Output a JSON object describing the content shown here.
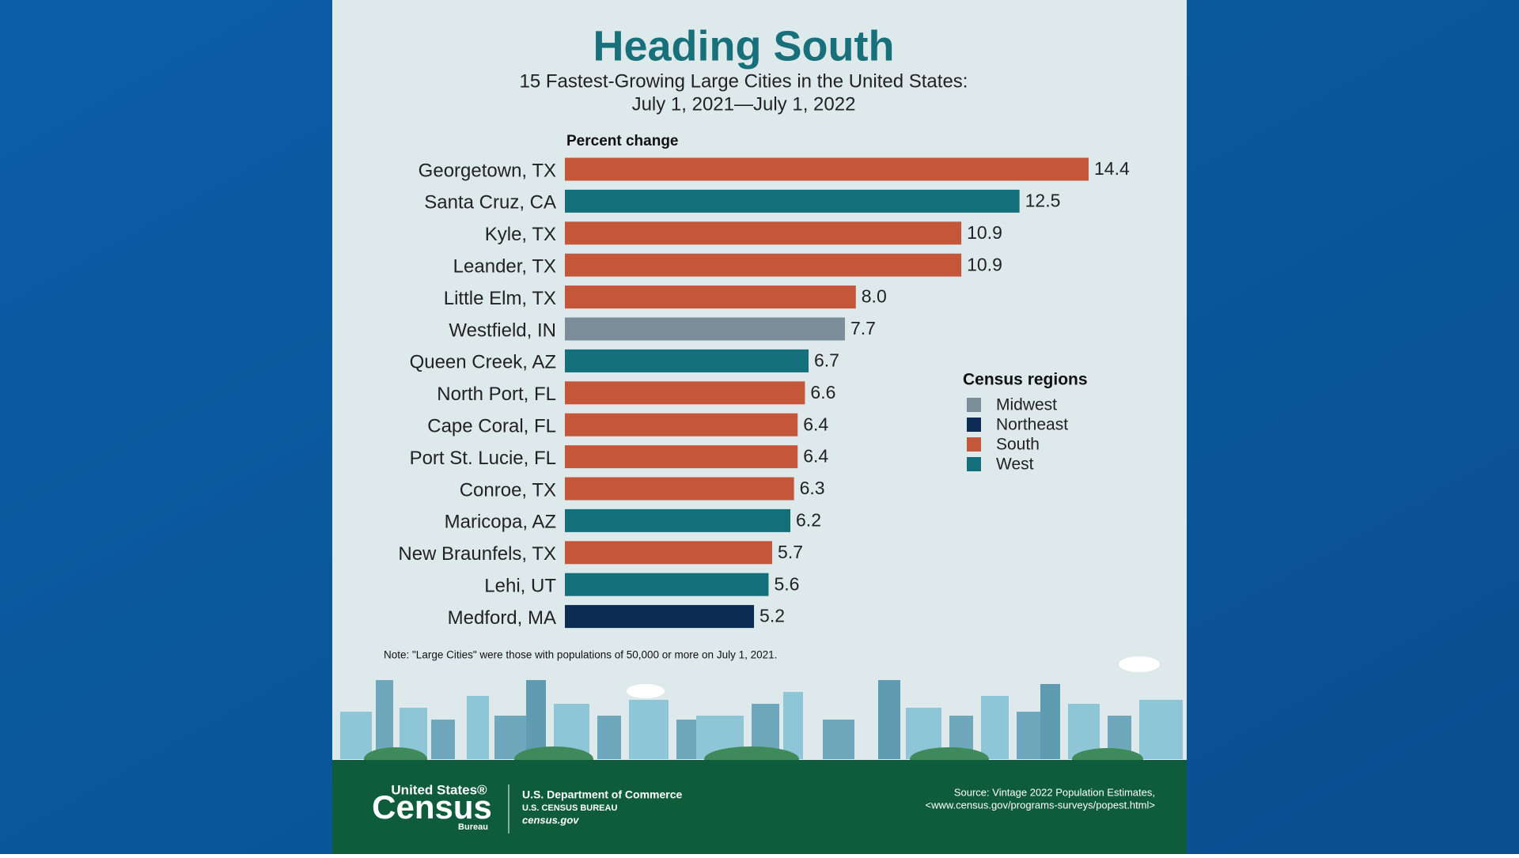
{
  "chart_data": {
    "type": "bar",
    "orientation": "horizontal",
    "title": "Heading South",
    "subtitle": [
      "15 Fastest-Growing Large Cities in the United States:",
      "July 1, 2021—July 1, 2022"
    ],
    "x_label": "Percent change",
    "categories": [
      "Georgetown, TX",
      "Santa Cruz, CA",
      "Kyle, TX",
      "Leander, TX",
      "Little Elm, TX",
      "Westfield, IN",
      "Queen Creek, AZ",
      "North Port, FL",
      "Cape Coral, FL",
      "Port St. Lucie, FL",
      "Conroe, TX",
      "Maricopa, AZ",
      "New Braunfels, TX",
      "Lehi, UT",
      "Medford, MA"
    ],
    "values": [
      14.4,
      12.5,
      10.9,
      10.9,
      8.0,
      7.7,
      6.7,
      6.6,
      6.4,
      6.4,
      6.3,
      6.2,
      5.7,
      5.6,
      5.2
    ],
    "value_labels": [
      "14.4",
      "12.5",
      "10.9",
      "10.9",
      "8.0",
      "7.7",
      "6.7",
      "6.6",
      "6.4",
      "6.4",
      "6.3",
      "6.2",
      "5.7",
      "5.6",
      "5.2"
    ],
    "colors": [
      "#c4563a",
      "#13707a",
      "#c4563a",
      "#c4563a",
      "#c4563a",
      "#7a8d99",
      "#13707a",
      "#c4563a",
      "#c4563a",
      "#c4563a",
      "#c4563a",
      "#13707a",
      "#c4563a",
      "#13707a",
      "#0d2c54"
    ],
    "legend": {
      "title": "Census regions",
      "items": [
        {
          "name": "Midwest",
          "color": "#7a8d99"
        },
        {
          "name": "Northeast",
          "color": "#0d2c54"
        },
        {
          "name": "South",
          "color": "#c4563a"
        },
        {
          "name": "West",
          "color": "#13707a"
        }
      ]
    },
    "note": "Note: \"Large Cities\" were those with populations of 50,000 or more on July 1, 2021."
  },
  "footer": {
    "logo_top": "United States®",
    "logo_main": "Census",
    "logo_bottom": "Bureau",
    "department": "U.S. Department of Commerce",
    "bureau": "U.S. CENSUS BUREAU",
    "website": "census.gov",
    "source": [
      "Source: Vintage 2022 Population Estimates,",
      "<www.census.gov/programs-surveys/popest.html>"
    ]
  }
}
